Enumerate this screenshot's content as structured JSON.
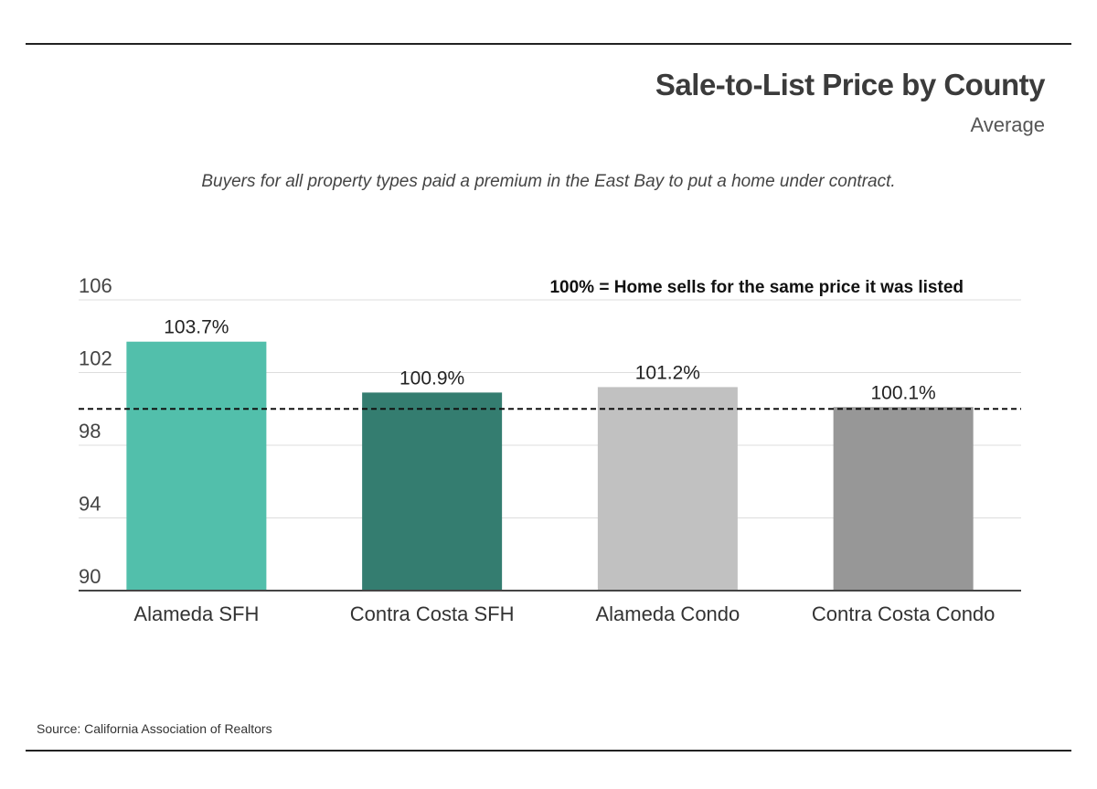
{
  "header": {
    "title": "Sale-to-List Price by County",
    "subtitle": "Average"
  },
  "caption": "Buyers for all property types paid a premium in the East Bay to put a home under contract.",
  "source": "Source:  California Association of Realtors",
  "chart_data": {
    "type": "bar",
    "title": "Sale-to-List Price by County",
    "subtitle": "Average",
    "categories": [
      "Alameda SFH",
      "Contra Costa SFH",
      "Alameda Condo",
      "Contra Costa Condo"
    ],
    "values": [
      103.7,
      100.9,
      101.2,
      100.1
    ],
    "value_labels": [
      "103.7%",
      "100.9%",
      "101.2%",
      "100.1%"
    ],
    "colors": [
      "#52bfab",
      "#347d70",
      "#c1c1c1",
      "#979797"
    ],
    "ylim": [
      90,
      106
    ],
    "yticks": [
      90,
      94,
      98,
      102,
      106
    ],
    "ytick_labels": [
      "90",
      "94",
      "98",
      "102",
      "106"
    ],
    "grid": true,
    "reference_line": {
      "value": 100,
      "style": "dashed"
    },
    "annotation": "100% = Home sells for the same price it was listed",
    "xlabel": "",
    "ylabel": ""
  }
}
